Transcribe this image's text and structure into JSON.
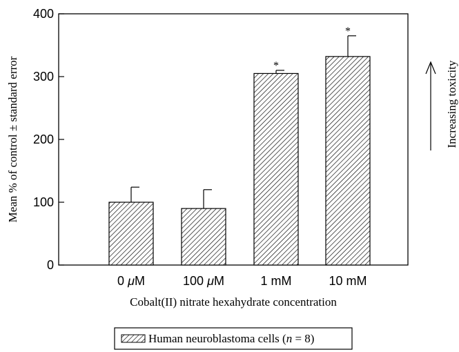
{
  "chart_data": {
    "type": "bar",
    "categories": [
      "0  μM",
      "100  μM",
      "1 mM",
      "10 mM"
    ],
    "series": [
      {
        "name": "Human neuroblastoma cells (n = 8)",
        "values": [
          100,
          90,
          305,
          332
        ],
        "errors": [
          24,
          30,
          5,
          33
        ],
        "significance": [
          "",
          "",
          "*",
          "*"
        ]
      }
    ],
    "xlabel": "Cobalt(II) nitrate hexahydrate concentration",
    "ylabel": "Mean % of control ± standard error",
    "ylim": [
      0,
      400
    ],
    "yticks": [
      0,
      100,
      200,
      300,
      400
    ],
    "annotation": "Increasing toxicity",
    "legend": {
      "label_prefix": "Human neuroblastoma cells (",
      "n_symbol": "n",
      "label_suffix": " = 8)",
      "placement": "bottom-center"
    },
    "bar_style": "hatched",
    "grid": false
  }
}
